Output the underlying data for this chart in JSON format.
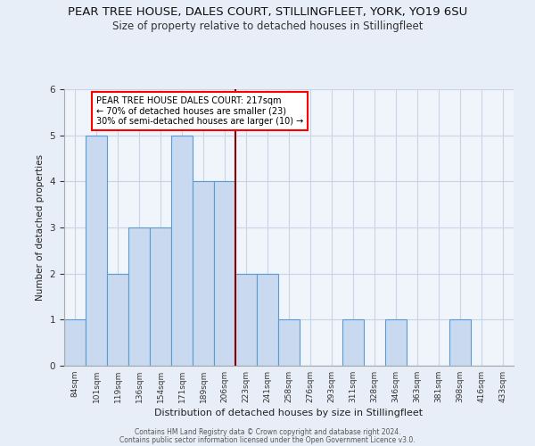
{
  "title": "PEAR TREE HOUSE, DALES COURT, STILLINGFLEET, YORK, YO19 6SU",
  "subtitle": "Size of property relative to detached houses in Stillingfleet",
  "xlabel": "Distribution of detached houses by size in Stillingfleet",
  "ylabel": "Number of detached properties",
  "categories": [
    "84sqm",
    "101sqm",
    "119sqm",
    "136sqm",
    "154sqm",
    "171sqm",
    "189sqm",
    "206sqm",
    "223sqm",
    "241sqm",
    "258sqm",
    "276sqm",
    "293sqm",
    "311sqm",
    "328sqm",
    "346sqm",
    "363sqm",
    "381sqm",
    "398sqm",
    "416sqm",
    "433sqm"
  ],
  "values": [
    1,
    5,
    2,
    3,
    3,
    5,
    4,
    4,
    2,
    2,
    1,
    0,
    0,
    1,
    0,
    1,
    0,
    0,
    1,
    0,
    0
  ],
  "bar_color": "#c9d9f0",
  "bar_edge_color": "#5b9bd5",
  "ref_line_idx": 8,
  "ref_line_label": "PEAR TREE HOUSE DALES COURT: 217sqm",
  "annotation_line1": "← 70% of detached houses are smaller (23)",
  "annotation_line2": "30% of semi-detached houses are larger (10) →",
  "ylim": [
    0,
    6
  ],
  "yticks": [
    0,
    1,
    2,
    3,
    4,
    5,
    6
  ],
  "footer1": "Contains HM Land Registry data © Crown copyright and database right 2024.",
  "footer2": "Contains public sector information licensed under the Open Government Licence v3.0.",
  "bg_color": "#e8eef8",
  "plot_bg": "#f0f4fb",
  "grid_color": "#c8d4e8",
  "title_fontsize": 9.5,
  "subtitle_fontsize": 8.5
}
